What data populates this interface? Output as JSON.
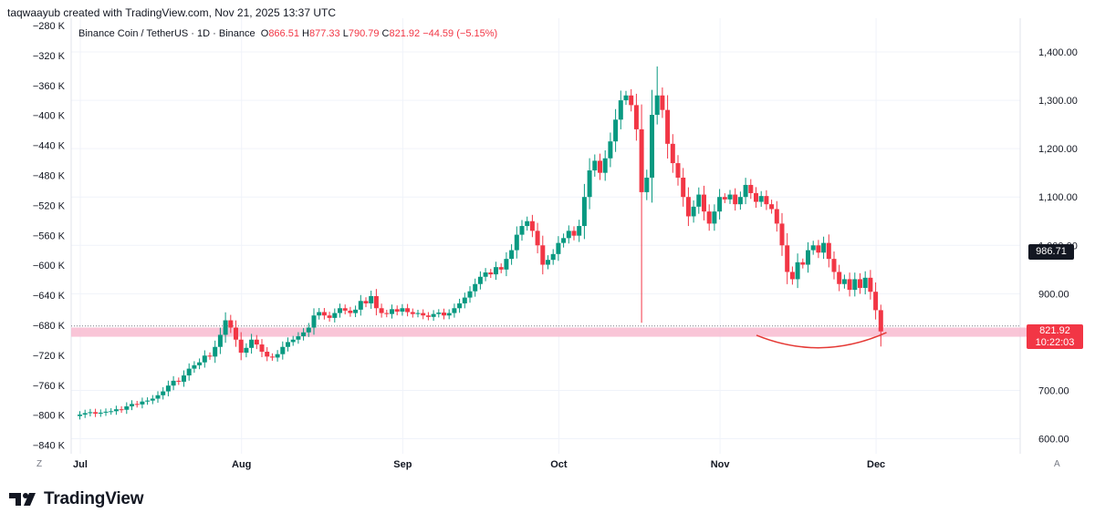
{
  "header": {
    "attribution": "taqwaayub created with TradingView.com, Nov 21, 2025 13:37 UTC"
  },
  "legend": {
    "symbol": "Binance Coin / TetherUS · 1D · Binance",
    "open_label": "O",
    "open": "866.51",
    "high_label": "H",
    "high": "877.33",
    "low_label": "L",
    "low": "790.79",
    "close_label": "C",
    "close": "821.92",
    "change": "−44.59 (−5.15%)"
  },
  "price_tag": {
    "price": "821.92",
    "countdown": "10:22:03"
  },
  "prev_tag": {
    "price": "986.71"
  },
  "brand": {
    "name": "TradingView",
    "logo_icon": "tradingview-logo-icon"
  },
  "axis_corners": {
    "left": "Z",
    "right": "A"
  },
  "colors": {
    "up": "#089981",
    "down": "#f23645",
    "zone": "#f8bbd0",
    "text": "#131722",
    "grid": "#f0f3fa"
  },
  "chart_data": {
    "type": "candlestick",
    "right_axis": {
      "ticks": [
        "1,400.00",
        "1,300.00",
        "1,200.00",
        "1,100.00",
        "1,000.00",
        "900.00",
        "700.00",
        "600.00"
      ],
      "tick_values": [
        1400,
        1300,
        1200,
        1100,
        1000,
        900,
        700,
        600
      ],
      "range": [
        570,
        1450
      ]
    },
    "left_axis": {
      "ticks": [
        "−280 K",
        "−320 K",
        "−360 K",
        "−400 K",
        "−440 K",
        "−480 K",
        "−520 K",
        "−560 K",
        "−600 K",
        "−640 K",
        "−680 K",
        "−720 K",
        "−760 K",
        "−800 K",
        "−840 K"
      ],
      "tick_values": [
        -280,
        -320,
        -360,
        -400,
        -440,
        -480,
        -520,
        -560,
        -600,
        -640,
        -680,
        -720,
        -760,
        -800,
        -840
      ]
    },
    "x_axis": {
      "labels": [
        "Jul",
        "Aug",
        "Sep",
        "Oct",
        "Nov",
        "Dec"
      ],
      "label_days": [
        0,
        31,
        62,
        92,
        123,
        153
      ]
    },
    "support_zone": [
      811,
      830
    ],
    "last_price": 821.92,
    "prev_marker": 986.71,
    "curve_annotation": {
      "start_day": 130,
      "end_day": 155,
      "top_price": 814,
      "bottom_price": 786
    },
    "close_series_start": "2025-06-30",
    "closes": [
      650,
      653,
      655,
      652,
      654,
      656,
      657,
      661,
      660,
      667,
      672,
      671,
      677,
      679,
      683,
      690,
      698,
      710,
      720,
      718,
      731,
      745,
      752,
      758,
      772,
      770,
      790,
      815,
      845,
      830,
      805,
      778,
      788,
      805,
      795,
      780,
      770,
      768,
      775,
      790,
      800,
      805,
      812,
      820,
      830,
      855,
      862,
      855,
      850,
      860,
      870,
      865,
      860,
      867,
      885,
      880,
      895,
      870,
      860,
      858,
      868,
      863,
      870,
      862,
      858,
      860,
      855,
      852,
      858,
      861,
      855,
      860,
      870,
      880,
      892,
      905,
      920,
      935,
      944,
      940,
      955,
      950,
      972,
      990,
      1022,
      1040,
      1050,
      1030,
      1000,
      960,
      970,
      982,
      1005,
      1015,
      1030,
      1020,
      1040,
      1100,
      1155,
      1175,
      1150,
      1180,
      1215,
      1260,
      1300,
      1310,
      1290,
      1240,
      1110,
      1140,
      1270,
      1310,
      1280,
      1210,
      1170,
      1140,
      1100,
      1060,
      1080,
      1105,
      1070,
      1045,
      1070,
      1100,
      1095,
      1105,
      1085,
      1100,
      1125,
      1108,
      1090,
      1102,
      1085,
      1075,
      1045,
      1000,
      945,
      930,
      965,
      960,
      990,
      1000,
      985,
      1005,
      972,
      945,
      920,
      930,
      908,
      930,
      912,
      933,
      904,
      866,
      822
    ]
  }
}
